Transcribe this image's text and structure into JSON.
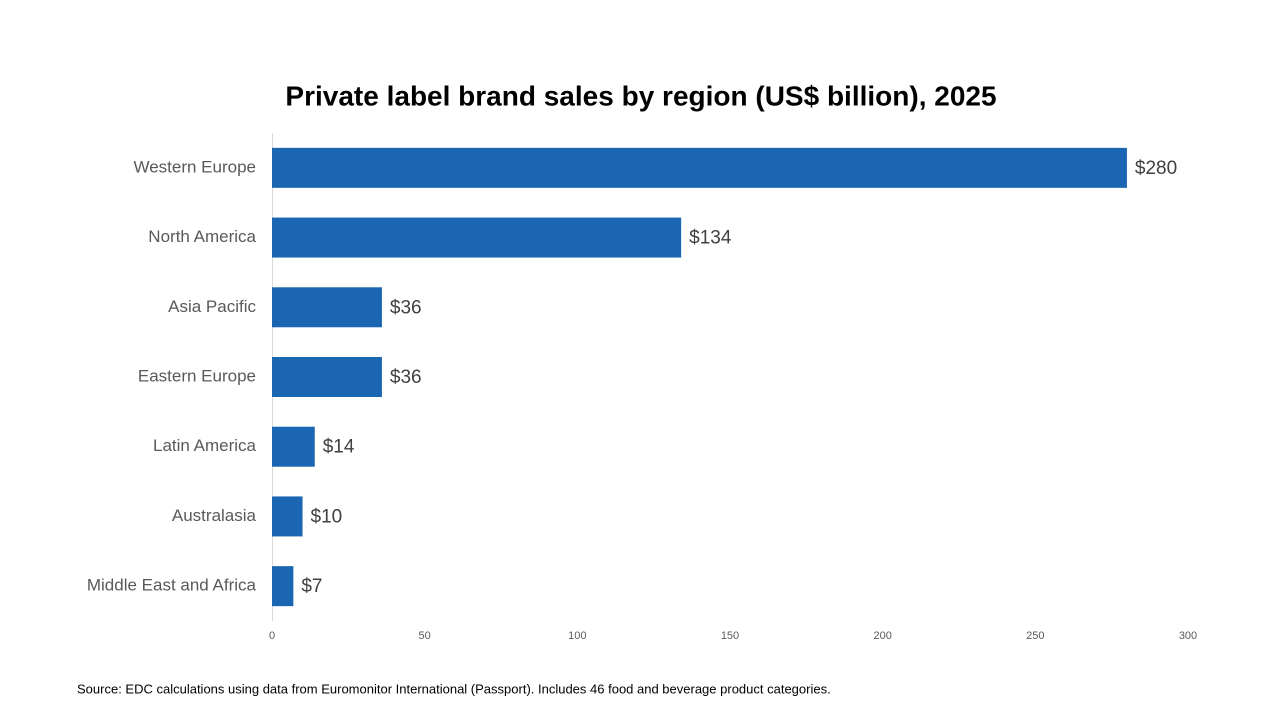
{
  "chart_data": {
    "type": "bar",
    "orientation": "horizontal",
    "title": "Private label brand sales by region (US$ billion), 2025",
    "categories": [
      "Western Europe",
      "North America",
      "Asia Pacific",
      "Eastern Europe",
      "Latin America",
      "Australasia",
      "Middle East and Africa"
    ],
    "values": [
      280,
      134,
      36,
      36,
      14,
      10,
      7
    ],
    "value_labels": [
      "$280",
      "$134",
      "$36",
      "$36",
      "$14",
      "$10",
      "$7"
    ],
    "color": "#1a66b3",
    "xlim": [
      0,
      300
    ],
    "xticks": [
      0,
      50,
      100,
      150,
      200,
      250,
      300
    ],
    "grid": false,
    "source": "Source: EDC calculations using data from Euromonitor International (Passport). Includes 46 food and beverage product categories."
  }
}
